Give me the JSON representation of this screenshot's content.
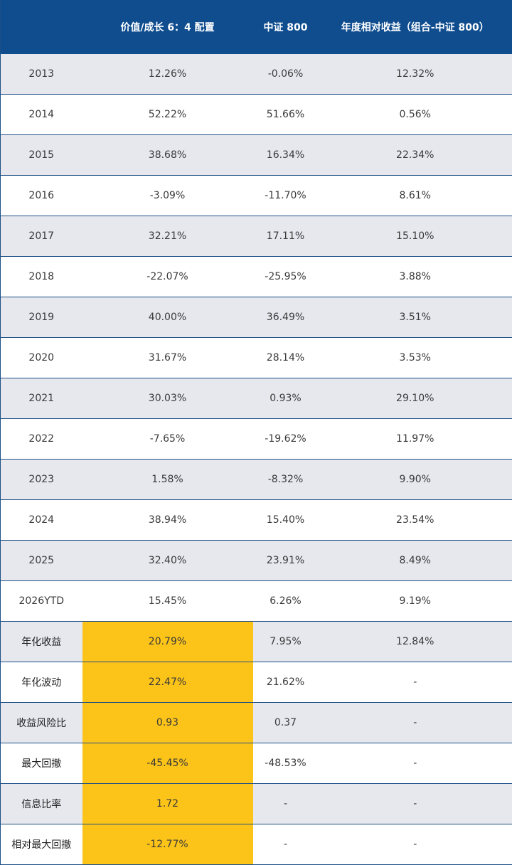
{
  "header": {
    "col0": "",
    "col1": "价值/成长 6：4 配置",
    "col2": "中证 800",
    "col3": "年度相对收益（组合-中证 800）"
  },
  "highlight_color": "#fcc419",
  "header_color": "#0f4d8f",
  "rows": [
    {
      "label": "2013",
      "portfolio": "12.26%",
      "csi800": "-0.06%",
      "relative": "12.32%"
    },
    {
      "label": "2014",
      "portfolio": "52.22%",
      "csi800": "51.66%",
      "relative": "0.56%"
    },
    {
      "label": "2015",
      "portfolio": "38.68%",
      "csi800": "16.34%",
      "relative": "22.34%"
    },
    {
      "label": "2016",
      "portfolio": "-3.09%",
      "csi800": "-11.70%",
      "relative": "8.61%"
    },
    {
      "label": "2017",
      "portfolio": "32.21%",
      "csi800": "17.11%",
      "relative": "15.10%"
    },
    {
      "label": "2018",
      "portfolio": "-22.07%",
      "csi800": "-25.95%",
      "relative": "3.88%"
    },
    {
      "label": "2019",
      "portfolio": "40.00%",
      "csi800": "36.49%",
      "relative": "3.51%"
    },
    {
      "label": "2020",
      "portfolio": "31.67%",
      "csi800": "28.14%",
      "relative": "3.53%"
    },
    {
      "label": "2021",
      "portfolio": "30.03%",
      "csi800": "0.93%",
      "relative": "29.10%"
    },
    {
      "label": "2022",
      "portfolio": "-7.65%",
      "csi800": "-19.62%",
      "relative": "11.97%"
    },
    {
      "label": "2023",
      "portfolio": "1.58%",
      "csi800": "-8.32%",
      "relative": "9.90%"
    },
    {
      "label": "2024",
      "portfolio": "38.94%",
      "csi800": "15.40%",
      "relative": "23.54%"
    },
    {
      "label": "2025",
      "portfolio": "32.40%",
      "csi800": "23.91%",
      "relative": "8.49%"
    },
    {
      "label": "2026YTD",
      "portfolio": "15.45%",
      "csi800": "6.26%",
      "relative": "9.19%"
    }
  ],
  "stats": [
    {
      "label": "年化收益",
      "portfolio": "20.79%",
      "csi800": "7.95%",
      "relative": "12.84%"
    },
    {
      "label": "年化波动",
      "portfolio": "22.47%",
      "csi800": "21.62%",
      "relative": "-"
    },
    {
      "label": "收益风险比",
      "portfolio": "0.93",
      "csi800": "0.37",
      "relative": "-"
    },
    {
      "label": "最大回撤",
      "portfolio": "-45.45%",
      "csi800": "-48.53%",
      "relative": "-"
    },
    {
      "label": "信息比率",
      "portfolio": "1.72",
      "csi800": "-",
      "relative": "-"
    },
    {
      "label": "相对最大回撤",
      "portfolio": "-12.77%",
      "csi800": "-",
      "relative": "-"
    }
  ]
}
